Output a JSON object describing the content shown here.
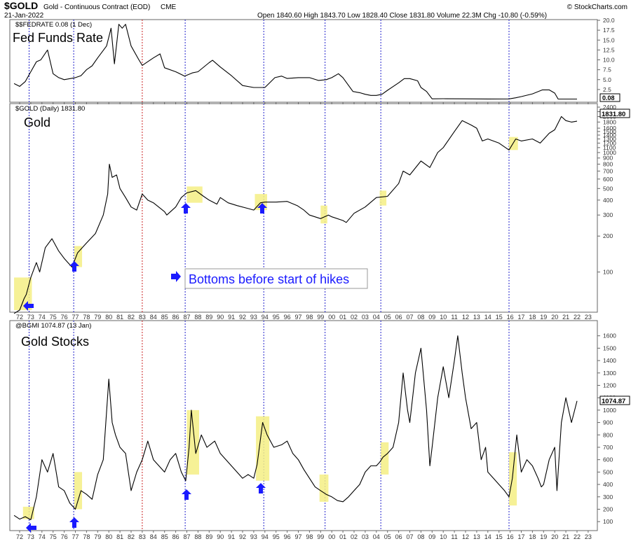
{
  "header": {
    "symbol": "$GOLD",
    "desc": "Gold - Continuous Contract (EOD)",
    "exchange": "CME",
    "date": "21-Jan-2022",
    "ohlc": "Open 1840.60  High 1843.70  Low 1828.40  Close 1831.80  Volume 22.3M  Chg -10.80 (-0.59%)",
    "credit": "© StockCharts.com"
  },
  "annotation": {
    "text": "Bottoms before start of hikes",
    "arrow_icon": "blue-right-arrow-icon"
  },
  "colors": {
    "highlight": "#f5ef84",
    "arrow": "#1a1aff",
    "blue_line": "#2222cc",
    "red_line": "#cc2222",
    "price_line": "#000000"
  },
  "x_tick_labels": [
    "72",
    "73",
    "74",
    "75",
    "76",
    "77",
    "78",
    "79",
    "80",
    "81",
    "82",
    "83",
    "84",
    "85",
    "86",
    "87",
    "88",
    "89",
    "90",
    "91",
    "92",
    "93",
    "94",
    "95",
    "96",
    "97",
    "98",
    "99",
    "00",
    "01",
    "02",
    "03",
    "04",
    "05",
    "06",
    "07",
    "08",
    "09",
    "10",
    "11",
    "12",
    "13",
    "14",
    "15",
    "16",
    "17",
    "18",
    "19",
    "20",
    "21",
    "22",
    "23"
  ],
  "chart_data": [
    {
      "type": "line",
      "legend_label": "$$FEDRATE 0.08 (1 Dec)",
      "title": "Fed Funds Rate",
      "last_value_label": "0.08",
      "y_ticks": [
        "20.0",
        "17.5",
        "15.0",
        "12.5",
        "10.0",
        "7.5",
        "5.0",
        "2.5"
      ],
      "ylim": [
        0,
        20
      ],
      "x": [
        1971.5,
        1972.0,
        1972.5,
        1973.0,
        1973.5,
        1973.9,
        1974.5,
        1975.0,
        1975.5,
        1976.0,
        1977.0,
        1977.5,
        1978.0,
        1978.5,
        1979.0,
        1979.8,
        1980.2,
        1980.5,
        1980.9,
        1981.2,
        1981.5,
        1982.0,
        1982.7,
        1983.0,
        1984.0,
        1984.6,
        1985.0,
        1986.0,
        1986.8,
        1987.5,
        1988.0,
        1989.0,
        1989.3,
        1990.0,
        1991.0,
        1992.0,
        1993.0,
        1994.0,
        1994.9,
        1995.5,
        1996.0,
        1997.0,
        1998.0,
        1998.8,
        1999.5,
        2000.0,
        2000.6,
        2001.0,
        2001.9,
        2002.5,
        2003.0,
        2003.5,
        2004.0,
        2004.5,
        2005.0,
        2006.0,
        2006.5,
        2007.0,
        2007.7,
        2008.0,
        2008.5,
        2009.0,
        2010.0,
        2012.0,
        2014.0,
        2015.9,
        2016.5,
        2017.0,
        2018.0,
        2018.9,
        2019.5,
        2020.0,
        2020.3,
        2021.0,
        2022.0
      ],
      "y": [
        4.0,
        3.3,
        4.5,
        7.0,
        9.5,
        10.0,
        12.5,
        6.5,
        5.5,
        5.0,
        5.5,
        6.0,
        7.5,
        8.5,
        10.5,
        13.5,
        18.0,
        9.0,
        19.0,
        18.0,
        19.0,
        13.5,
        10.0,
        8.6,
        10.5,
        11.5,
        8.0,
        7.0,
        5.9,
        6.7,
        7.0,
        9.3,
        9.9,
        8.2,
        6.0,
        3.5,
        3.0,
        3.0,
        5.5,
        5.9,
        5.3,
        5.5,
        5.5,
        4.8,
        5.0,
        5.5,
        6.5,
        5.5,
        2.0,
        1.7,
        1.3,
        1.0,
        1.0,
        1.3,
        2.3,
        4.2,
        5.25,
        5.25,
        4.7,
        3.0,
        2.0,
        0.15,
        0.18,
        0.15,
        0.1,
        0.12,
        0.4,
        0.7,
        1.4,
        2.4,
        2.4,
        1.6,
        0.1,
        0.08,
        0.08
      ]
    },
    {
      "type": "line",
      "scale": "log",
      "legend_label": "$GOLD (Daily) 1831.80",
      "title": "Gold",
      "last_value_label": "1831.80",
      "y_ticks": [
        "2400",
        "2200",
        "2000",
        "1800",
        "1600",
        "1500",
        "1400",
        "1300",
        "1200",
        "1100",
        "1000",
        "900",
        "800",
        "700",
        "600",
        "500",
        "400",
        "300",
        "200",
        "100"
      ],
      "ylim": [
        50,
        2500
      ],
      "x": [
        1971.5,
        1972.0,
        1972.4,
        1972.6,
        1973.0,
        1973.5,
        1973.8,
        1974.3,
        1974.9,
        1975.5,
        1976.0,
        1976.7,
        1977.2,
        1978.0,
        1978.8,
        1979.5,
        1979.9,
        1980.05,
        1980.3,
        1980.7,
        1981.0,
        1981.5,
        1982.0,
        1982.5,
        1983.0,
        1983.5,
        1984.0,
        1985.0,
        1985.2,
        1986.0,
        1986.5,
        1987.0,
        1987.8,
        1988.5,
        1989.0,
        1989.7,
        1990.0,
        1990.7,
        1991.5,
        1992.5,
        1993.0,
        1993.6,
        1994.0,
        1995.0,
        1996.0,
        1996.9,
        1997.5,
        1998.0,
        1999.0,
        1999.7,
        2000.0,
        2001.0,
        2001.3,
        2002.0,
        2003.0,
        2004.0,
        2005.0,
        2006.0,
        2006.4,
        2007.0,
        2008.0,
        2008.8,
        2009.5,
        2010.0,
        2011.0,
        2011.7,
        2012.5,
        2013.0,
        2013.5,
        2014.0,
        2015.0,
        2015.9,
        2016.5,
        2017.0,
        2018.0,
        2018.7,
        2019.5,
        2020.0,
        2020.6,
        2021.0,
        2021.5,
        2022.0
      ],
      "y": [
        45,
        48,
        60,
        65,
        90,
        120,
        100,
        160,
        190,
        150,
        130,
        110,
        145,
        175,
        210,
        300,
        450,
        800,
        620,
        650,
        500,
        420,
        350,
        330,
        450,
        400,
        380,
        320,
        300,
        350,
        420,
        460,
        480,
        430,
        400,
        370,
        420,
        380,
        360,
        340,
        330,
        380,
        385,
        385,
        390,
        360,
        330,
        300,
        280,
        300,
        290,
        270,
        260,
        310,
        350,
        420,
        430,
        550,
        700,
        650,
        850,
        750,
        1000,
        1100,
        1500,
        1850,
        1700,
        1600,
        1250,
        1300,
        1200,
        1050,
        1300,
        1250,
        1300,
        1200,
        1450,
        1550,
        2000,
        1850,
        1800,
        1831
      ]
    },
    {
      "type": "line",
      "legend_label": "@BGMI 1074.87 (13 Jan)",
      "title": "Gold Stocks",
      "last_value_label": "1074.87",
      "y_ticks": [
        "1600",
        "1500",
        "1400",
        "1300",
        "1200",
        "1100",
        "1000",
        "900",
        "800",
        "700",
        "600",
        "500",
        "400",
        "300",
        "200",
        "100"
      ],
      "ylim": [
        50,
        1700
      ],
      "x": [
        1971.5,
        1972.0,
        1972.5,
        1973.0,
        1973.5,
        1974.0,
        1974.5,
        1975.0,
        1975.5,
        1976.0,
        1976.5,
        1977.0,
        1977.5,
        1978.0,
        1978.5,
        1979.0,
        1979.5,
        1980.0,
        1980.3,
        1980.6,
        1981.0,
        1981.5,
        1982.0,
        1982.5,
        1983.0,
        1983.5,
        1984.0,
        1985.0,
        1985.5,
        1986.0,
        1986.5,
        1986.9,
        1987.2,
        1987.4,
        1987.8,
        1988.3,
        1988.8,
        1989.5,
        1990.0,
        1991.0,
        1992.0,
        1992.5,
        1993.0,
        1993.3,
        1993.8,
        1994.2,
        1994.8,
        1995.5,
        1996.0,
        1996.5,
        1997.0,
        1997.5,
        1998.0,
        1998.5,
        1999.0,
        1999.5,
        2000.0,
        2000.5,
        2001.0,
        2001.5,
        2002.0,
        2002.5,
        2003.0,
        2003.5,
        2004.0,
        2004.3,
        2004.6,
        2005.0,
        2005.5,
        2006.0,
        2006.4,
        2006.8,
        2007.0,
        2007.5,
        2008.0,
        2008.5,
        2008.8,
        2009.0,
        2009.5,
        2010.0,
        2010.5,
        2011.0,
        2011.3,
        2011.7,
        2012.0,
        2012.5,
        2013.0,
        2013.4,
        2013.8,
        2014.0,
        2014.5,
        2015.0,
        2015.5,
        2015.9,
        2016.2,
        2016.6,
        2017.0,
        2017.5,
        2018.0,
        2018.5,
        2018.8,
        2019.0,
        2019.5,
        2020.0,
        2020.2,
        2020.6,
        2021.0,
        2021.5,
        2022.0
      ],
      "y": [
        150,
        120,
        140,
        115,
        300,
        600,
        500,
        650,
        380,
        350,
        250,
        200,
        350,
        320,
        280,
        480,
        600,
        1250,
        900,
        800,
        700,
        650,
        350,
        500,
        600,
        750,
        600,
        500,
        600,
        650,
        500,
        430,
        700,
        1000,
        650,
        800,
        700,
        750,
        650,
        550,
        450,
        480,
        450,
        560,
        900,
        800,
        700,
        720,
        750,
        650,
        600,
        520,
        450,
        380,
        350,
        320,
        300,
        270,
        260,
        300,
        350,
        400,
        500,
        550,
        550,
        580,
        620,
        650,
        700,
        900,
        1300,
        1000,
        900,
        1300,
        1500,
        1000,
        550,
        700,
        1100,
        1350,
        1100,
        1400,
        1600,
        1300,
        1100,
        850,
        900,
        600,
        700,
        500,
        450,
        400,
        350,
        300,
        450,
        800,
        500,
        600,
        550,
        450,
        380,
        400,
        600,
        700,
        350,
        900,
        1100,
        900,
        1074
      ]
    }
  ]
}
